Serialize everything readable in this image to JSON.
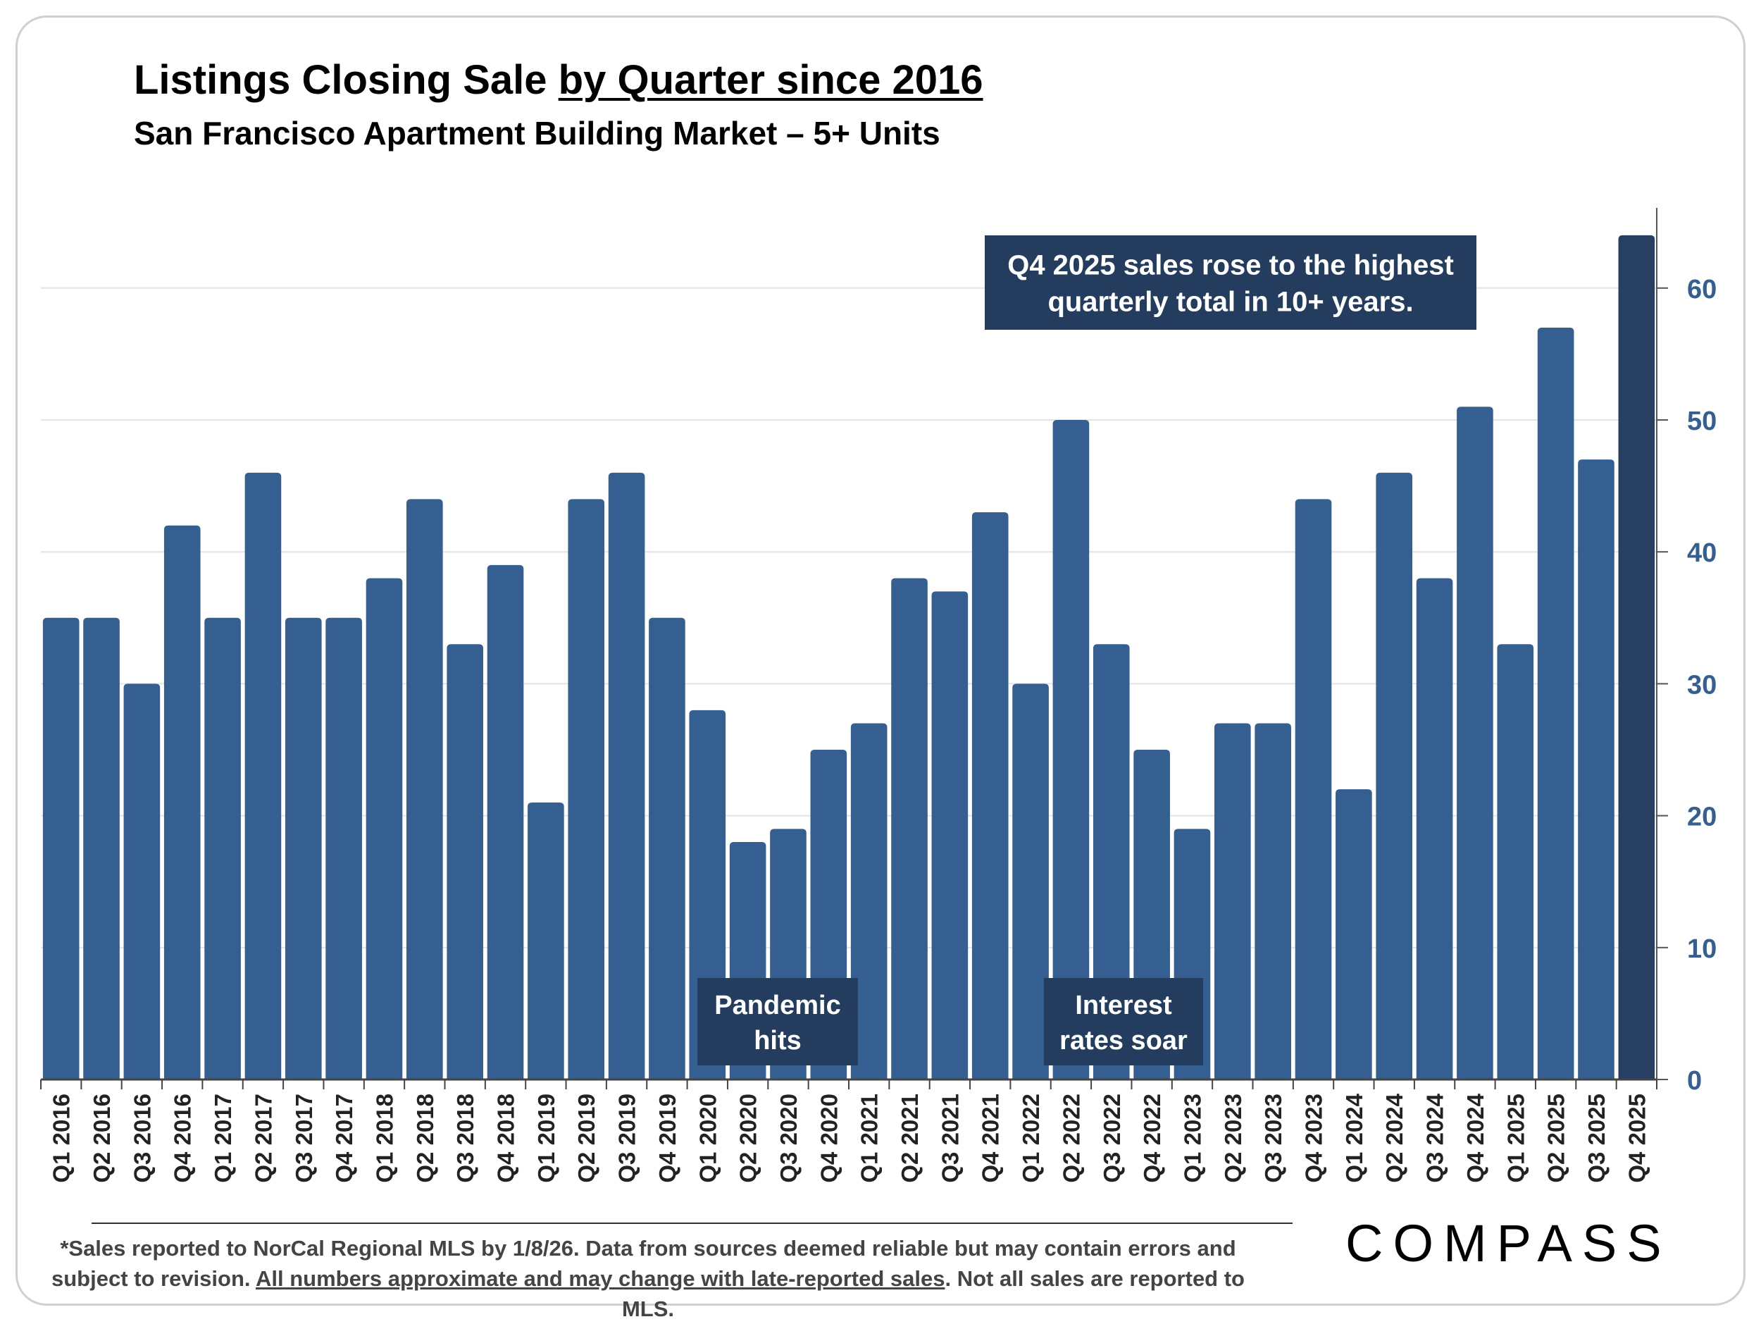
{
  "title": {
    "prefix": "Listings Closing Sale ",
    "underlined": "by Quarter since 2016"
  },
  "subtitle": "San Francisco Apartment Building Market – 5+ Units",
  "colors": {
    "bar": "#355f91",
    "highlight_bar": "#263f63",
    "callout_bg": "#243d5f",
    "axis_label": "#355f91",
    "grid": "#e4e4e4"
  },
  "chart_data": {
    "type": "bar",
    "categories": [
      "Q1 2016",
      "Q2 2016",
      "Q3 2016",
      "Q4 2016",
      "Q1 2017",
      "Q2 2017",
      "Q3 2017",
      "Q4 2017",
      "Q1 2018",
      "Q2 2018",
      "Q3 2018",
      "Q4 2018",
      "Q1 2019",
      "Q2 2019",
      "Q3 2019",
      "Q4 2019",
      "Q1 2020",
      "Q2 2020",
      "Q3 2020",
      "Q4 2020",
      "Q1 2021",
      "Q2 2021",
      "Q3 2021",
      "Q4 2021",
      "Q1 2022",
      "Q2 2022",
      "Q3 2022",
      "Q4 2022",
      "Q1 2023",
      "Q2 2023",
      "Q3 2023",
      "Q4 2023",
      "Q1 2024",
      "Q2 2024",
      "Q3 2024",
      "Q4 2024",
      "Q1 2025",
      "Q2 2025",
      "Q3 2025",
      "Q4 2025"
    ],
    "values": [
      35,
      35,
      30,
      42,
      35,
      46,
      35,
      35,
      38,
      44,
      33,
      39,
      21,
      44,
      46,
      35,
      28,
      18,
      19,
      25,
      27,
      38,
      37,
      43,
      30,
      50,
      33,
      25,
      19,
      27,
      27,
      44,
      22,
      46,
      38,
      51,
      33,
      57,
      47,
      64
    ],
    "highlight_index": 39,
    "ylim": [
      0,
      66
    ],
    "yticks": [
      0,
      10,
      20,
      30,
      40,
      50,
      60
    ],
    "y_axis_side": "right",
    "grid": true,
    "annotations": [
      {
        "lines": [
          "Q4 2025 sales rose to the highest",
          "quarterly total in 10+ years."
        ],
        "placement": "top-right"
      },
      {
        "lines": [
          "Pandemic",
          "hits"
        ],
        "anchor_category": "Q1 2020"
      },
      {
        "lines": [
          "Interest",
          "rates soar"
        ],
        "anchor_category": "Q1 2022"
      }
    ]
  },
  "footnote": {
    "line1": "*Sales reported to NorCal Regional MLS by 1/8/26. Data from sources deemed reliable but may contain errors and",
    "line2_prefix": "subject to revision. ",
    "line2_underlined": "All numbers approximate and may change with late-reported sales",
    "line2_suffix": ". Not all sales are reported to MLS."
  },
  "logo": "COMPASS"
}
